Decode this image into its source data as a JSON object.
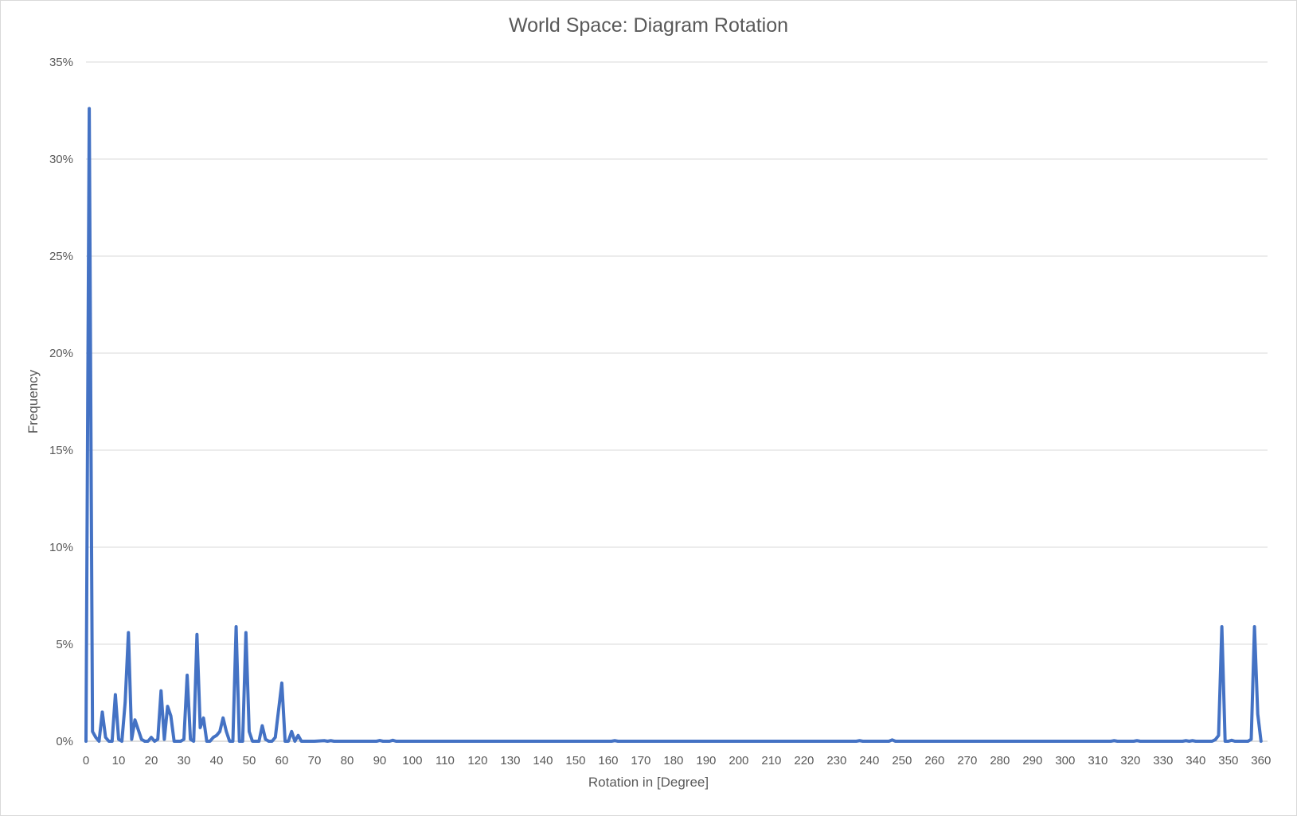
{
  "chart_data": {
    "type": "line",
    "title": "World Space: Diagram Rotation",
    "xlabel": "Rotation in [Degree]",
    "ylabel": "Frequency",
    "xlim": [
      0,
      362
    ],
    "ylim": [
      0,
      0.35
    ],
    "x_ticks": [
      "0",
      "10",
      "20",
      "30",
      "40",
      "50",
      "60",
      "70",
      "80",
      "90",
      "100",
      "110",
      "120",
      "130",
      "140",
      "150",
      "160",
      "170",
      "180",
      "190",
      "200",
      "210",
      "220",
      "230",
      "240",
      "250",
      "260",
      "270",
      "280",
      "290",
      "300",
      "310",
      "320",
      "330",
      "340",
      "350",
      "360"
    ],
    "y_ticks": [
      "0%",
      "5%",
      "10%",
      "15%",
      "20%",
      "25%",
      "30%",
      "35%"
    ],
    "grid": true,
    "line_color": "#4472C4",
    "series": [
      {
        "points": [
          [
            0,
            0.0
          ],
          [
            1,
            0.326
          ],
          [
            2,
            0.005
          ],
          [
            3,
            0.002
          ],
          [
            4,
            0.0
          ],
          [
            5,
            0.015
          ],
          [
            6,
            0.002
          ],
          [
            7,
            0.0
          ],
          [
            8,
            0.0
          ],
          [
            9,
            0.024
          ],
          [
            10,
            0.001
          ],
          [
            11,
            0.0
          ],
          [
            12,
            0.02
          ],
          [
            13,
            0.056
          ],
          [
            14,
            0.001
          ],
          [
            15,
            0.011
          ],
          [
            16,
            0.006
          ],
          [
            17,
            0.001
          ],
          [
            18,
            0.0
          ],
          [
            19,
            0.0
          ],
          [
            20,
            0.002
          ],
          [
            21,
            0.0
          ],
          [
            22,
            0.001
          ],
          [
            23,
            0.026
          ],
          [
            24,
            0.001
          ],
          [
            25,
            0.018
          ],
          [
            26,
            0.013
          ],
          [
            27,
            0.0
          ],
          [
            28,
            0.0
          ],
          [
            29,
            0.0
          ],
          [
            30,
            0.001
          ],
          [
            31,
            0.034
          ],
          [
            32,
            0.001
          ],
          [
            33,
            0.0
          ],
          [
            34,
            0.055
          ],
          [
            35,
            0.007
          ],
          [
            36,
            0.012
          ],
          [
            37,
            0.0
          ],
          [
            38,
            0.0
          ],
          [
            39,
            0.002
          ],
          [
            40,
            0.003
          ],
          [
            41,
            0.005
          ],
          [
            42,
            0.012
          ],
          [
            43,
            0.005
          ],
          [
            44,
            0.0
          ],
          [
            45,
            0.0
          ],
          [
            46,
            0.059
          ],
          [
            47,
            0.0
          ],
          [
            48,
            0.0
          ],
          [
            49,
            0.056
          ],
          [
            50,
            0.005
          ],
          [
            51,
            0.0
          ],
          [
            52,
            0.0
          ],
          [
            53,
            0.0
          ],
          [
            54,
            0.008
          ],
          [
            55,
            0.001
          ],
          [
            56,
            0.0
          ],
          [
            57,
            0.0
          ],
          [
            58,
            0.002
          ],
          [
            59,
            0.016
          ],
          [
            60,
            0.03
          ],
          [
            61,
            0.0
          ],
          [
            62,
            0.0
          ],
          [
            63,
            0.005
          ],
          [
            64,
            0.0
          ],
          [
            65,
            0.003
          ],
          [
            66,
            0.0
          ],
          [
            67,
            0.0
          ],
          [
            70,
            0.0
          ],
          [
            73,
            0.0003
          ],
          [
            74,
            0.0
          ],
          [
            75,
            0.0003
          ],
          [
            76,
            0.0
          ],
          [
            89,
            0.0
          ],
          [
            90,
            0.0004
          ],
          [
            91,
            0.0
          ],
          [
            93,
            0.0
          ],
          [
            94,
            0.0005
          ],
          [
            95,
            0.0
          ],
          [
            161,
            0.0
          ],
          [
            162,
            0.0003
          ],
          [
            163,
            0.0
          ],
          [
            236,
            0.0
          ],
          [
            237,
            0.0003
          ],
          [
            238,
            0.0
          ],
          [
            246,
            0.0
          ],
          [
            247,
            0.0007
          ],
          [
            248,
            0.0
          ],
          [
            314,
            0.0
          ],
          [
            315,
            0.0003
          ],
          [
            316,
            0.0
          ],
          [
            321,
            0.0
          ],
          [
            322,
            0.0003
          ],
          [
            323,
            0.0
          ],
          [
            336,
            0.0
          ],
          [
            337,
            0.0003
          ],
          [
            338,
            0.0
          ],
          [
            339,
            0.0003
          ],
          [
            340,
            0.0
          ],
          [
            345,
            0.0
          ],
          [
            346,
            0.0008
          ],
          [
            347,
            0.003
          ],
          [
            348,
            0.059
          ],
          [
            349,
            0.0
          ],
          [
            350,
            0.0
          ],
          [
            351,
            0.0005
          ],
          [
            352,
            0.0
          ],
          [
            356,
            0.0
          ],
          [
            357,
            0.001
          ],
          [
            358,
            0.059
          ],
          [
            359,
            0.014
          ],
          [
            360,
            0.0
          ]
        ]
      }
    ]
  }
}
